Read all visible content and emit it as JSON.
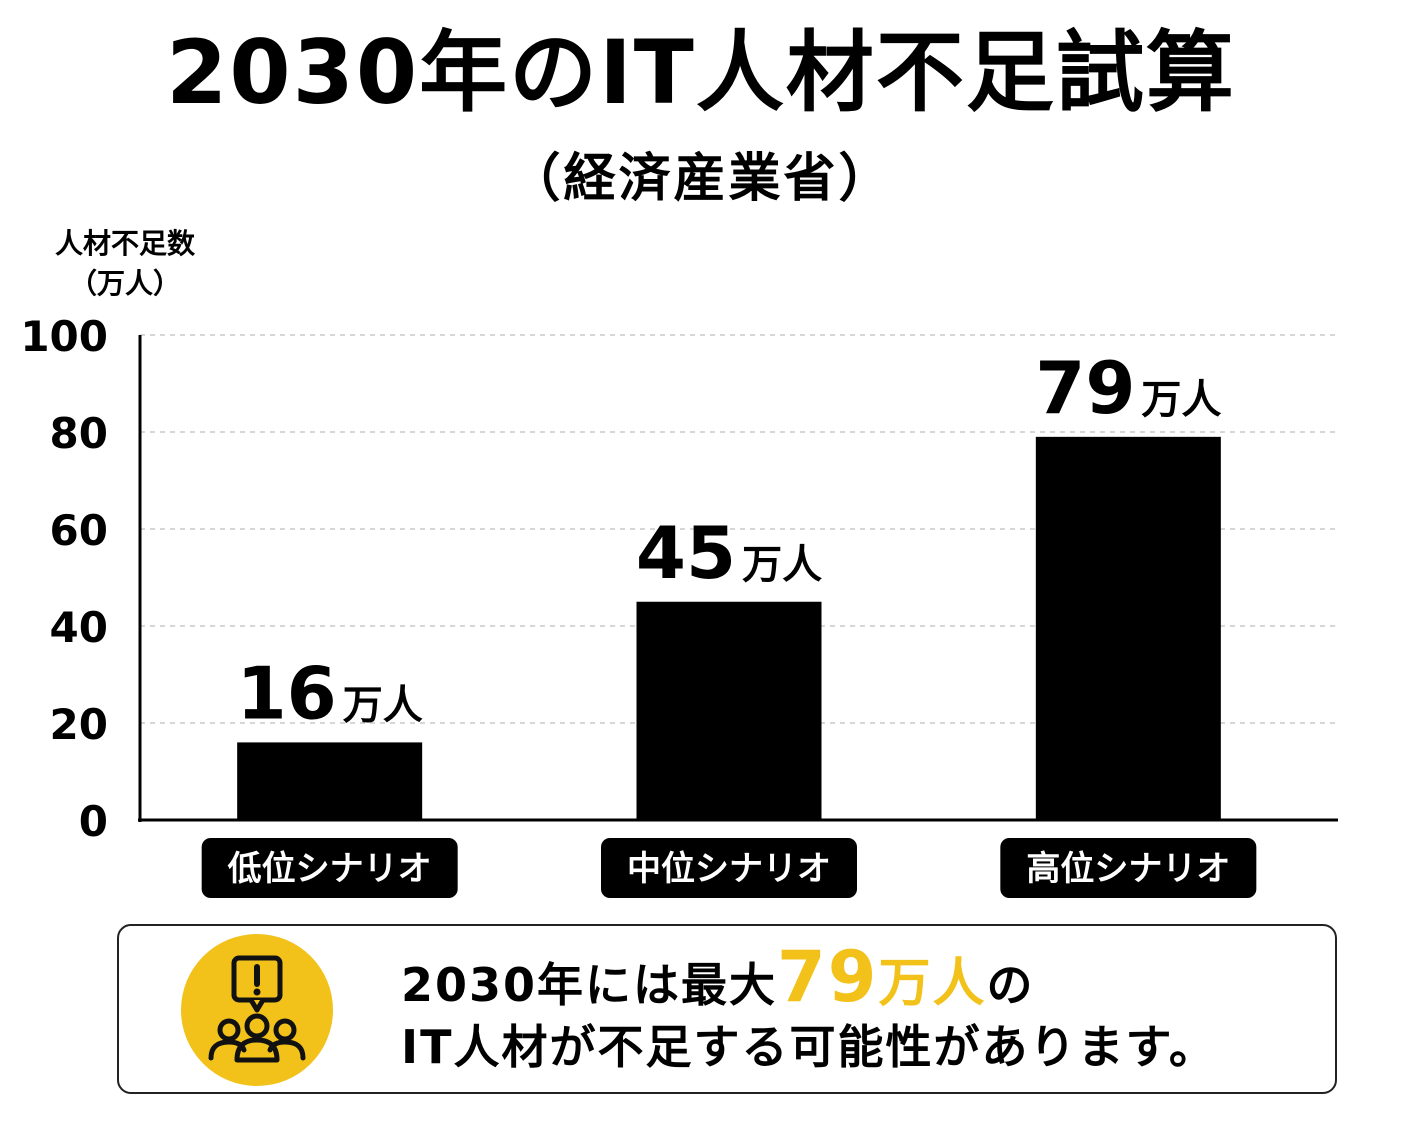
{
  "title": "2030年のIT人材不足試算",
  "subtitle": "（経済産業省）",
  "y_axis_label": [
    "人材不足数",
    "（万人）"
  ],
  "chart_data": {
    "type": "bar",
    "title": "2030年のIT人材不足試算",
    "subtitle": "（経済産業省）",
    "ylabel": "人材不足数（万人）",
    "xlabel": "",
    "categories": [
      "低位シナリオ",
      "中位シナリオ",
      "高位シナリオ"
    ],
    "values": [
      16,
      45,
      79
    ],
    "data_labels": [
      {
        "number": "16",
        "unit": "万人"
      },
      {
        "number": "45",
        "unit": "万人"
      },
      {
        "number": "79",
        "unit": "万人"
      }
    ],
    "ylim": [
      0,
      100
    ],
    "yticks": [
      "0",
      "20",
      "40",
      "60",
      "80",
      "100"
    ],
    "grid": true,
    "bar_color": "#000000",
    "category_label_style": "white text on black rounded box"
  },
  "callout": {
    "icon": "alert-people-icon",
    "line1_prefix": "2030年には最大",
    "highlight_number": "79",
    "highlight_unit": "万人",
    "line1_suffix": "の",
    "line2": "IT人材が不足する可能性があります。",
    "highlight_color": "#f2c21b"
  }
}
